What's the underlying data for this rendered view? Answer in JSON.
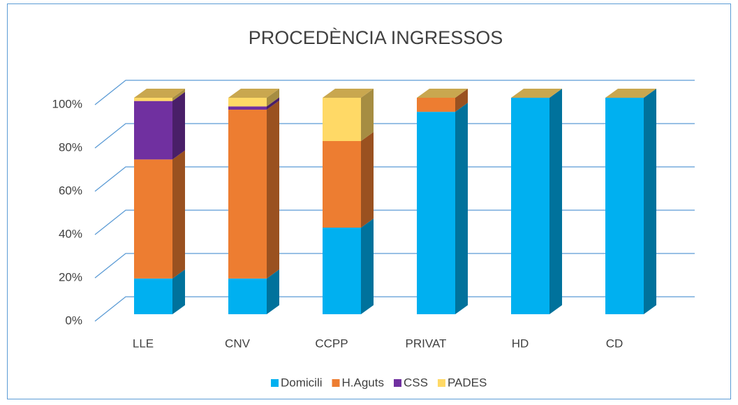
{
  "chart_data": {
    "type": "bar3d_stacked",
    "title": "PROCEDÈNCIA INGRESSOS",
    "categories": [
      "LLE",
      "CNV",
      "CCPP",
      "PRIVAT",
      "HD",
      "CD"
    ],
    "series": [
      {
        "name": "Domicili",
        "color": "#00b0f0",
        "values": [
          16.5,
          16.5,
          40,
          93.5,
          100,
          100
        ]
      },
      {
        "name": "H.Aguts",
        "color": "#ed7d31",
        "values": [
          55,
          78,
          40,
          6.5,
          0,
          0
        ]
      },
      {
        "name": "CSS",
        "color": "#7030a0",
        "values": [
          27,
          1.5,
          0,
          0,
          0,
          0
        ]
      },
      {
        "name": "PADES",
        "color": "#ffd966",
        "values": [
          1.5,
          4,
          20,
          0,
          0,
          0
        ]
      }
    ],
    "ylim": [
      0,
      100
    ],
    "yticks": [
      {
        "value": 0,
        "label": "0%"
      },
      {
        "value": 20,
        "label": "20%"
      },
      {
        "value": 40,
        "label": "40%"
      },
      {
        "value": 60,
        "label": "60%"
      },
      {
        "value": 80,
        "label": "80%"
      },
      {
        "value": 100,
        "label": "100%"
      }
    ],
    "grid": true,
    "legend": "bottom"
  }
}
